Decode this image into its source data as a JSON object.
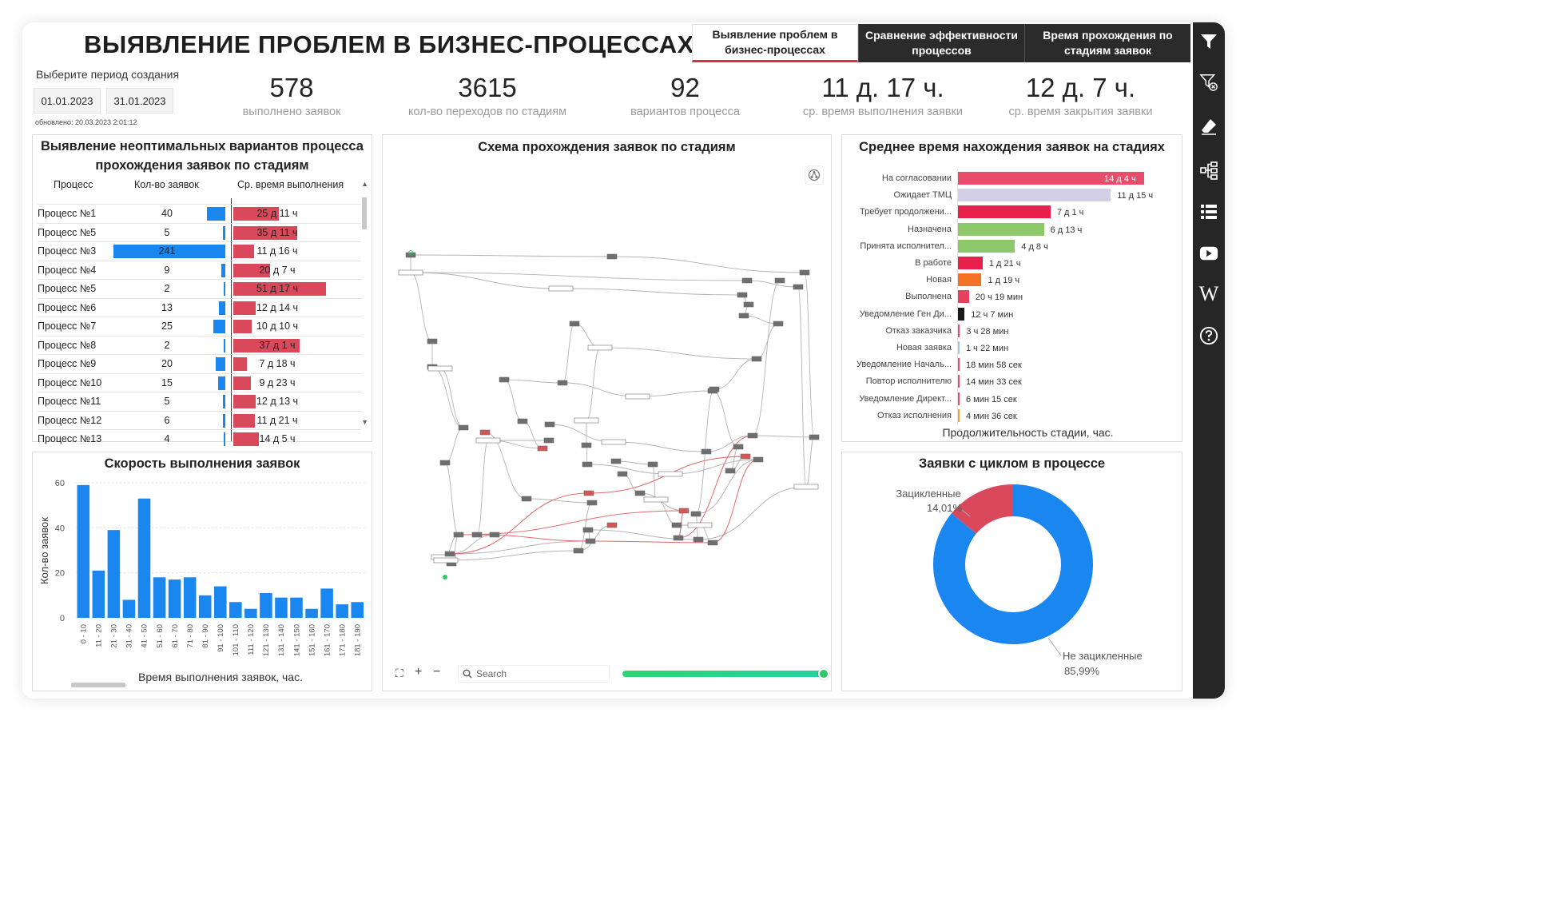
{
  "page": {
    "title": "ВЫЯВЛЕНИЕ ПРОБЛЕМ В БИЗНЕС-ПРОЦЕССАХ",
    "tabs": [
      {
        "label": "Выявление проблем в бизнес-процессах",
        "active": true
      },
      {
        "label": "Сравнение эффективности процессов",
        "active": false
      },
      {
        "label": "Время прохождения по стадиям заявок",
        "active": false
      }
    ]
  },
  "filter": {
    "period_label": "Выберите период создания",
    "date_from": "01.01.2023",
    "date_to": "31.01.2023",
    "updated": "обновлено: 20.03.2023 2:01:12"
  },
  "kpis": [
    {
      "value": "578",
      "label": "выполнено заявок"
    },
    {
      "value": "3615",
      "label": "кол-во переходов по стадиям"
    },
    {
      "value": "92",
      "label": "вариантов процесса"
    },
    {
      "value": "11 д. 17 ч.",
      "label": "ср. время выполнения заявки"
    },
    {
      "value": "12 д. 7 ч.",
      "label": "ср. время закрытия заявки"
    }
  ],
  "process_table": {
    "title": "Выявление неоптимальных вариантов процесса прохождения заявок по стадиям",
    "columns": [
      "Процесс",
      "Кол-во заявок",
      "Ср. время выполнения"
    ],
    "rows": [
      {
        "name": "Процесс №1",
        "count": 40,
        "time": "25 д 11 ч",
        "hours": 611
      },
      {
        "name": "Процесс №5",
        "count": 5,
        "time": "35 д 11 ч",
        "hours": 851
      },
      {
        "name": "Процесс №3",
        "count": 241,
        "time": "11 д 16 ч",
        "hours": 280
      },
      {
        "name": "Процесс №4",
        "count": 9,
        "time": "20 д 7 ч",
        "hours": 487
      },
      {
        "name": "Процесс №5",
        "count": 2,
        "time": "51 д 17 ч",
        "hours": 1241
      },
      {
        "name": "Процесс №6",
        "count": 13,
        "time": "12 д 14 ч",
        "hours": 302
      },
      {
        "name": "Процесс №7",
        "count": 25,
        "time": "10 д 10 ч",
        "hours": 250
      },
      {
        "name": "Процесс №8",
        "count": 2,
        "time": "37 д 1 ч",
        "hours": 889
      },
      {
        "name": "Процесс №9",
        "count": 20,
        "time": "7 д 18 ч",
        "hours": 186
      },
      {
        "name": "Процесс №10",
        "count": 15,
        "time": "9 д 23 ч",
        "hours": 239
      },
      {
        "name": "Процесс №11",
        "count": 5,
        "time": "12 д 13 ч",
        "hours": 301
      },
      {
        "name": "Процесс №12",
        "count": 6,
        "time": "11 д 21 ч",
        "hours": 285
      },
      {
        "name": "Процесс №13",
        "count": 4,
        "time": "14 д 5 ч",
        "hours": 341
      }
    ]
  },
  "process_graph": {
    "title": "Схема прохождения заявок по стадиям",
    "search_placeholder": "Search"
  },
  "stage_time": {
    "title": "Среднее время нахождения заявок на стадиях",
    "axis_label": "Продолжительность стадии, час.",
    "rows": [
      {
        "label": "На согласовании",
        "value": "14 д 4 ч",
        "hours": 340,
        "color": "#e94c6a"
      },
      {
        "label": "Ожидает ТМЦ",
        "value": "11 д 15 ч",
        "hours": 279,
        "color": "#d3cfe6"
      },
      {
        "label": "Требует продолжени...",
        "value": "7 д 1 ч",
        "hours": 169,
        "color": "#e8204a"
      },
      {
        "label": "Назначена",
        "value": "6 д 13 ч",
        "hours": 157,
        "color": "#8dc86a"
      },
      {
        "label": "Принята исполнител...",
        "value": "4 д 8 ч",
        "hours": 104,
        "color": "#8dc86a"
      },
      {
        "label": "В работе",
        "value": "1 д 21 ч",
        "hours": 45,
        "color": "#e8204a"
      },
      {
        "label": "Новая",
        "value": "1 д 19 ч",
        "hours": 43,
        "color": "#f57125"
      },
      {
        "label": "Выполнена",
        "value": "20 ч 19 мин",
        "hours": 20.3,
        "color": "#e4425c"
      },
      {
        "label": "Уведомление Ген Ди...",
        "value": "12 ч 7 мин",
        "hours": 12.1,
        "color": "#1a1a1a"
      },
      {
        "label": "Отказ заказчика",
        "value": "3 ч 28 мин",
        "hours": 3.5,
        "color": "#e94c6a"
      },
      {
        "label": "Новая заявка",
        "value": "1 ч 22 мин",
        "hours": 1.4,
        "color": "#9fc8ef"
      },
      {
        "label": "Уведомление Началь...",
        "value": "18 мин 58 сек",
        "hours": 0.32,
        "color": "#e94c6a"
      },
      {
        "label": "Повтор исполнителю",
        "value": "14 мин 33 сек",
        "hours": 0.24,
        "color": "#e94c6a"
      },
      {
        "label": "Уведомление Директ...",
        "value": "6 мин 15 сек",
        "hours": 0.1,
        "color": "#e94c6a"
      },
      {
        "label": "Отказ исполнения",
        "value": "4 мин 36 сек",
        "hours": 0.08,
        "color": "#f0a030"
      }
    ]
  },
  "chart_data": [
    {
      "type": "bar",
      "title": "Скорость выполнения заявок",
      "xlabel": "Время выполнения заявок, час.",
      "ylabel": "Кол-во заявок",
      "ylim": [
        0,
        60
      ],
      "yticks": [
        0,
        20,
        40,
        60
      ],
      "categories": [
        "0 - 10",
        "11 - 20",
        "21 - 30",
        "31 - 40",
        "41 - 50",
        "51 - 60",
        "61 - 70",
        "71 - 80",
        "81 - 90",
        "91 - 100",
        "101 - 110",
        "111 - 120",
        "121 - 130",
        "131 - 140",
        "141 - 150",
        "151 - 160",
        "161 - 170",
        "171 - 180",
        "181 - 190"
      ],
      "values": [
        59,
        21,
        39,
        8,
        53,
        18,
        17,
        18,
        10,
        14,
        7,
        4,
        11,
        9,
        9,
        4,
        13,
        6,
        7
      ],
      "color": "#1a86f0"
    },
    {
      "type": "pie",
      "title": "Заявки с циклом в процессе",
      "slices": [
        {
          "label": "Зацикленные",
          "value": 14.01,
          "display": "14,01%",
          "color": "#d9485b"
        },
        {
          "label": "Не зацикленные",
          "value": 85.99,
          "display": "85,99%",
          "color": "#1a86f0"
        }
      ]
    }
  ],
  "icons": {
    "accent": "#d6334a",
    "sidebar": [
      "filter-icon",
      "clear-filter-icon",
      "eraser-icon",
      "hierarchy-icon",
      "list-icon",
      "youtube-icon",
      "wikipedia-icon",
      "help-icon"
    ]
  }
}
